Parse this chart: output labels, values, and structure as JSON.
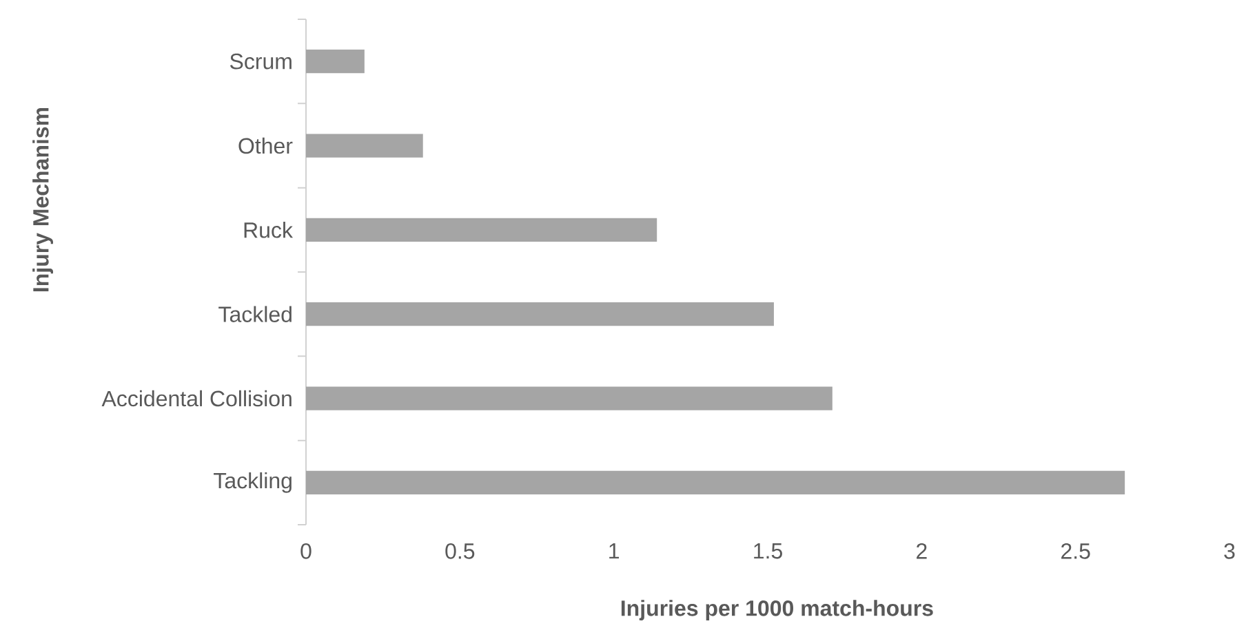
{
  "chart_data": {
    "type": "bar",
    "orientation": "horizontal",
    "categories": [
      "Scrum",
      "Other",
      "Ruck",
      "Tackled",
      "Accidental Collision",
      "Tackling"
    ],
    "values": [
      0.19,
      0.38,
      1.14,
      1.52,
      1.71,
      2.66
    ],
    "color": "#a5a5a5",
    "xlim": [
      0,
      3
    ],
    "xticks": [
      0,
      0.5,
      1,
      1.5,
      2,
      2.5,
      3
    ],
    "xlabel": "Injuries per 1000 match-hours",
    "ylabel": "Injury Mechanism"
  }
}
